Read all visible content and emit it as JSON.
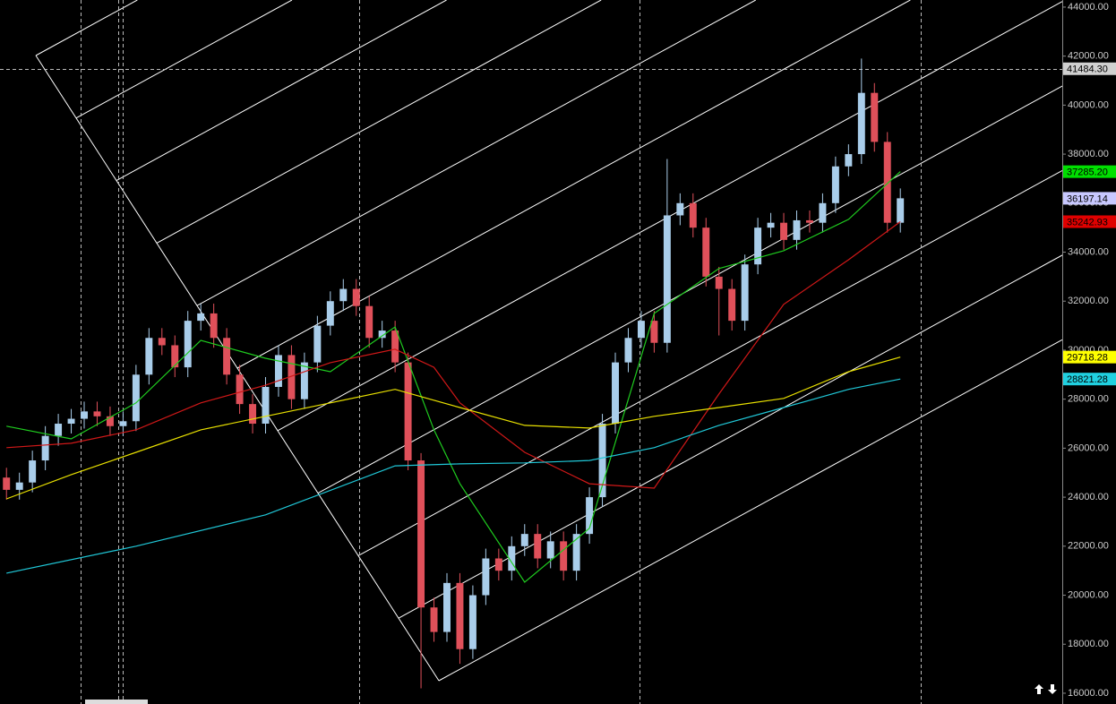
{
  "chart_data": {
    "type": "candlestick",
    "xlim": [
      -0.5,
      81.5
    ],
    "ylim": [
      15560,
      44290
    ],
    "xticks": [
      5.7,
      8.6,
      9.0,
      27.2,
      48.9,
      70.6
    ],
    "yticks": [
      {
        "value": 16000,
        "label": "16000.00"
      },
      {
        "value": 18000,
        "label": "18000.00"
      },
      {
        "value": 20000,
        "label": "20000.00"
      },
      {
        "value": 22000,
        "label": "22000.00"
      },
      {
        "value": 24000,
        "label": "24000.00"
      },
      {
        "value": 26000,
        "label": "26000.00"
      },
      {
        "value": 28000,
        "label": "28000.00"
      },
      {
        "value": 30000,
        "label": "30000.00"
      },
      {
        "value": 32000,
        "label": "32000.00"
      },
      {
        "value": 34000,
        "label": "34000.00"
      },
      {
        "value": 36000,
        "label": "36000.00"
      },
      {
        "value": 38000,
        "label": "38000.00"
      },
      {
        "value": 40000,
        "label": "40000.00"
      },
      {
        "value": 42000,
        "label": "42000.00"
      },
      {
        "value": 44000,
        "label": "44000.00"
      }
    ],
    "up_color": "#a9cdea",
    "down_color": "#e0505a",
    "candles": {
      "x": [
        0,
        1,
        2,
        3,
        4,
        5,
        6,
        7,
        8,
        9,
        10,
        11,
        12,
        13,
        14,
        15,
        16,
        17,
        18,
        19,
        20,
        21,
        22,
        23,
        24,
        25,
        26,
        27,
        28,
        29,
        30,
        31,
        32,
        33,
        34,
        35,
        36,
        37,
        38,
        39,
        40,
        41,
        42,
        43,
        44,
        45,
        46,
        47,
        48,
        49,
        50,
        51,
        52,
        53,
        54,
        55,
        56,
        57,
        58,
        59,
        60,
        61,
        62,
        63,
        64,
        65,
        66,
        67,
        68,
        69
      ],
      "open": [
        24800,
        24300,
        24600,
        25500,
        26500,
        27000,
        27200,
        27500,
        27300,
        26900,
        27100,
        29000,
        30500,
        30200,
        29300,
        31200,
        31500,
        30500,
        29000,
        27800,
        27000,
        28500,
        29800,
        28000,
        29500,
        31000,
        32000,
        32500,
        31800,
        30500,
        30800,
        29500,
        25500,
        19500,
        18500,
        20500,
        17800,
        20000,
        21500,
        21000,
        22000,
        22500,
        21500,
        22200,
        21000,
        22500,
        24000,
        27000,
        29500,
        30500,
        31200,
        30300,
        35500,
        36000,
        35000,
        33000,
        32500,
        31200,
        33500,
        35000,
        35200,
        34500,
        35300,
        35200,
        36000,
        37500,
        38000,
        40500,
        38500,
        35200
      ],
      "high": [
        25200,
        25000,
        25900,
        26900,
        27400,
        27600,
        27900,
        27900,
        27700,
        27500,
        29400,
        30900,
        30900,
        30600,
        31600,
        31900,
        31900,
        30900,
        29400,
        28200,
        28900,
        30200,
        30200,
        29900,
        31400,
        32400,
        32900,
        32900,
        32200,
        31200,
        31200,
        29900,
        25800,
        19900,
        20900,
        20900,
        20400,
        21900,
        21900,
        22400,
        22900,
        22900,
        22600,
        22600,
        22900,
        24400,
        27400,
        29900,
        30900,
        31600,
        31600,
        37800,
        36400,
        36400,
        35400,
        33400,
        32900,
        33900,
        35400,
        35600,
        35600,
        35700,
        35700,
        36400,
        37900,
        38400,
        41900,
        40900,
        38900,
        36600
      ],
      "low": [
        23900,
        23900,
        24200,
        25100,
        26100,
        26600,
        26800,
        26900,
        26500,
        26500,
        26700,
        28600,
        29800,
        28900,
        28900,
        30800,
        30100,
        28600,
        27400,
        26600,
        26600,
        28100,
        27600,
        27600,
        29100,
        30600,
        31600,
        31400,
        30100,
        30100,
        29100,
        25100,
        16200,
        18100,
        18100,
        17200,
        17400,
        19600,
        20600,
        20600,
        21600,
        21100,
        21100,
        20600,
        20600,
        22100,
        23600,
        26600,
        29100,
        30100,
        29900,
        29900,
        35100,
        34600,
        32600,
        30600,
        30800,
        30800,
        33100,
        34600,
        34100,
        34100,
        34800,
        34800,
        35600,
        37100,
        37600,
        38100,
        34800,
        34800
      ],
      "close": [
        24300,
        24600,
        25500,
        26500,
        27000,
        27200,
        27500,
        27300,
        26900,
        27100,
        29000,
        30500,
        30200,
        29300,
        31200,
        31500,
        30500,
        29000,
        27800,
        27000,
        28500,
        29800,
        28000,
        29500,
        31000,
        32000,
        32500,
        31800,
        30500,
        30800,
        29500,
        25500,
        19500,
        18500,
        20500,
        17800,
        20000,
        21500,
        21000,
        22000,
        22500,
        21500,
        22200,
        21000,
        22500,
        24000,
        27000,
        29500,
        30500,
        31200,
        30300,
        35500,
        36000,
        35000,
        33000,
        32500,
        31200,
        33500,
        35000,
        35200,
        34500,
        35300,
        35200,
        36000,
        37500,
        38000,
        40500,
        38500,
        35200,
        36197.14
      ],
      "last_label": "36197.14",
      "marker_color": "#c8c8ff"
    },
    "series": [
      {
        "color": "#1fcc1f",
        "marker_color": "#00e000",
        "x": [
          0,
          5,
          10,
          15,
          20,
          25,
          30,
          33,
          35,
          40,
          45,
          50,
          55,
          60,
          65,
          69
        ],
        "values": [
          26900,
          26380,
          27850,
          30400,
          29670,
          29120,
          30950,
          26750,
          24550,
          20530,
          22730,
          31500,
          33330,
          34060,
          35340,
          37285.2
        ],
        "last_label": "37285.20"
      },
      {
        "color": "#d01818",
        "marker_color": "#e00000",
        "x": [
          0,
          5,
          10,
          15,
          20,
          25,
          30,
          33,
          35,
          40,
          45,
          50,
          55,
          60,
          65,
          69
        ],
        "values": [
          26020,
          26200,
          26750,
          27850,
          28570,
          29490,
          30040,
          29300,
          27850,
          25830,
          24550,
          24370,
          28210,
          31870,
          33690,
          35242.93
        ],
        "last_label": "35242.93"
      },
      {
        "color": "#e8e000",
        "marker_color": "#ffff00",
        "x": [
          0,
          5,
          10,
          15,
          20,
          25,
          30,
          35,
          40,
          45,
          50,
          55,
          60,
          65,
          69
        ],
        "values": [
          23930,
          24920,
          25830,
          26750,
          27300,
          27850,
          28400,
          27660,
          26930,
          26820,
          27300,
          27660,
          28030,
          29120,
          29718.28
        ],
        "last_label": "29718.28"
      },
      {
        "color": "#20c8d8",
        "marker_color": "#20d0e0",
        "x": [
          0,
          10,
          20,
          30,
          35,
          40,
          45,
          50,
          55,
          60,
          65,
          69
        ],
        "values": [
          20900,
          22000,
          23280,
          25280,
          25360,
          25400,
          25500,
          26020,
          26930,
          27660,
          28400,
          28821.28
        ],
        "last_label": "28821.28"
      }
    ],
    "crosshair": {
      "value": 41484.3,
      "label": "41484.30",
      "color": "#d0d0d0"
    }
  }
}
